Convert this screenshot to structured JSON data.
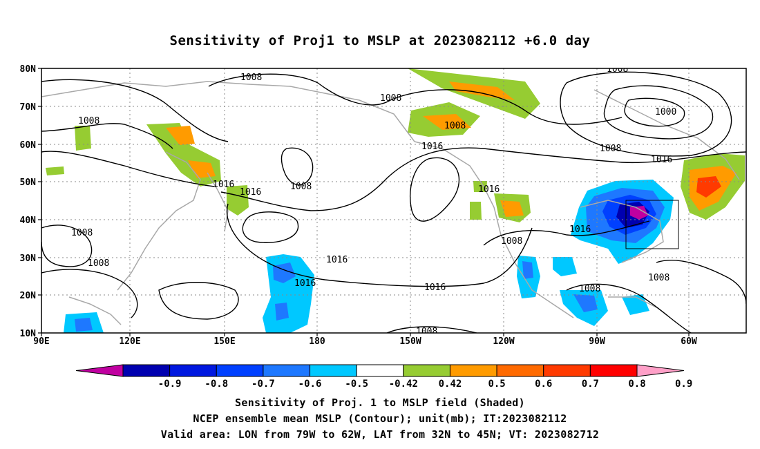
{
  "title": "Sensitivity of Proj1 to MSLP at 2023082112 +6.0 day",
  "lat_labels": [
    "80N",
    "70N",
    "60N",
    "50N",
    "40N",
    "30N",
    "20N",
    "10N"
  ],
  "lon_labels": [
    "90E",
    "120E",
    "150E",
    "180",
    "150W",
    "120W",
    "90W",
    "60W"
  ],
  "contour_labels": [
    "1008",
    "1008",
    "1008",
    "1008",
    "1016",
    "1016",
    "1008",
    "1016",
    "1008",
    "1008",
    "1016",
    "1008",
    "1016",
    "1016",
    "1016",
    "1016",
    "1008",
    "1008",
    "1008",
    "1000",
    "1008",
    "1016",
    "1008"
  ],
  "colorbar": {
    "labels": [
      "-0.9",
      "-0.8",
      "-0.7",
      "-0.6",
      "-0.5",
      "-0.42",
      "0.42",
      "0.5",
      "0.6",
      "0.7",
      "0.8",
      "0.9"
    ],
    "colors": [
      "#c000a0",
      "#0000b0",
      "#0018e0",
      "#0040ff",
      "#1e78ff",
      "#00c8ff",
      "#ffffff",
      "#96cc32",
      "#ff9b00",
      "#ff6a00",
      "#ff3a00",
      "#ff0000",
      "#ffa0c8"
    ]
  },
  "footer": {
    "line1": "Sensitivity of Proj. 1 to MSLP field (Shaded)",
    "line2": "NCEP ensemble mean MSLP (Contour); unit(mb); IT:2023082112",
    "line3": "Valid area: LON from 79W to 62W, LAT from 32N to 45N; VT: 2023082712"
  }
}
